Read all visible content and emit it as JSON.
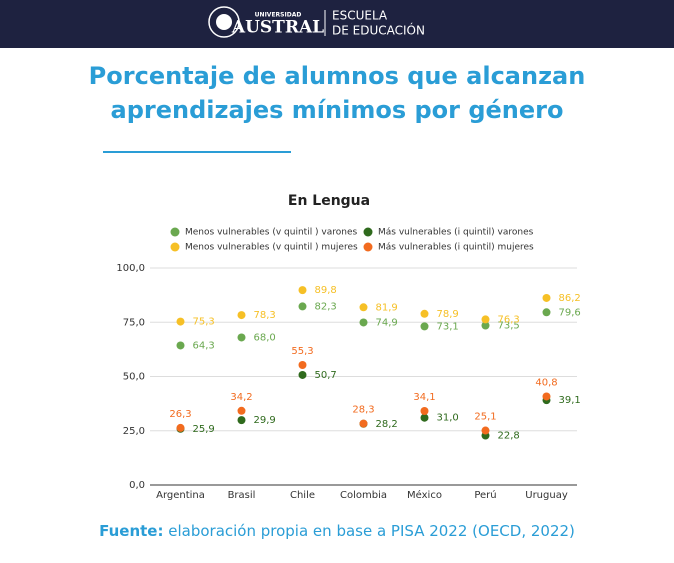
{
  "header": {
    "university_small": "UNIVERSIDAD",
    "university": "AUSTRAL",
    "school_line1": "ESCUELA",
    "school_line2": "DE EDUCACIÓN"
  },
  "title": [
    "Porcentaje de alumnos que alcanzan",
    "aprendizajes mínimos por género"
  ],
  "chart_data": {
    "type": "scatter",
    "title": "En Lengua",
    "categories": [
      "Argentina",
      "Brasil",
      "Chile",
      "Colombia",
      "México",
      "Perú",
      "Uruguay"
    ],
    "ylim": [
      0,
      100
    ],
    "yticks": [
      {
        "value": 0,
        "label": "0,0"
      },
      {
        "value": 25,
        "label": "25,0"
      },
      {
        "value": 50,
        "label": "50,0"
      },
      {
        "value": 75,
        "label": "75,0"
      },
      {
        "value": 100,
        "label": "100,0"
      }
    ],
    "grid": true,
    "series": [
      {
        "name": "Menos vulnerables (v quintil ) varones",
        "color": "#6aa84f",
        "values": [
          64.3,
          68.0,
          82.3,
          74.9,
          73.1,
          73.5,
          79.6
        ],
        "value_labels": [
          "64,3",
          "68,0",
          "82,3",
          "74,9",
          "73,1",
          "73,5",
          "79,6"
        ]
      },
      {
        "name": "Menos vulnerables (v quintil ) mujeres",
        "color": "#f6c026",
        "values": [
          75.3,
          78.3,
          89.8,
          81.9,
          78.9,
          76.3,
          86.2
        ],
        "value_labels": [
          "75,3",
          "78,3",
          "89,8",
          "81,9",
          "78,9",
          "76,3",
          "86,2"
        ]
      },
      {
        "name": "Más vulnerables (i quintil) varones",
        "color": "#2f6a1d",
        "values": [
          25.9,
          29.9,
          50.7,
          28.2,
          31.0,
          22.8,
          39.1
        ],
        "value_labels": [
          "25,9",
          "29,9",
          "50,7",
          "28,2",
          "31,0",
          "22,8",
          "39,1"
        ]
      },
      {
        "name": "Más vulnerables (i quintil) mujeres",
        "color": "#f26b1f",
        "values": [
          26.3,
          34.2,
          55.3,
          28.3,
          34.1,
          25.1,
          40.8
        ],
        "value_labels": [
          "26,3",
          "34,2",
          "55,3",
          "28,3",
          "34,1",
          "25,1",
          "40,8"
        ]
      }
    ]
  },
  "footer": {
    "label": "Fuente:",
    "text": " elaboración propia en base a PISA 2022 (OECD, 2022)"
  }
}
